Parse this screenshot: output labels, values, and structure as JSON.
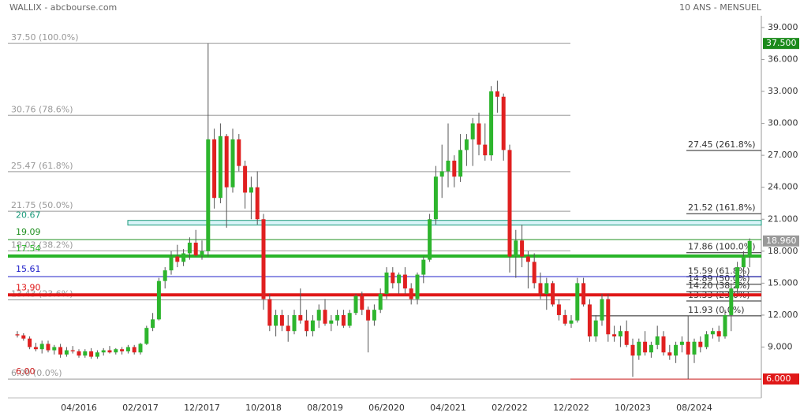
{
  "header": {
    "left": "WALLIX - abcbourse.com",
    "right": "10 ANS - MENSUEL"
  },
  "chart_data": {
    "type": "candlestick",
    "up_color": "#2db52d",
    "down_color": "#e02020",
    "categories": [
      null,
      null,
      null,
      null,
      null,
      null,
      null,
      null,
      null,
      null,
      "04/2016",
      null,
      null,
      null,
      null,
      null,
      null,
      null,
      null,
      null,
      "02/2017",
      null,
      null,
      null,
      null,
      null,
      null,
      null,
      null,
      null,
      "12/2017",
      null,
      null,
      null,
      null,
      null,
      null,
      null,
      null,
      null,
      "10/2018",
      null,
      null,
      null,
      null,
      null,
      null,
      null,
      null,
      null,
      "08/2019",
      null,
      null,
      null,
      null,
      null,
      null,
      null,
      null,
      null,
      "06/2020",
      null,
      null,
      null,
      null,
      null,
      null,
      null,
      null,
      null,
      "04/2021",
      null,
      null,
      null,
      null,
      null,
      null,
      null,
      null,
      null,
      "02/2022",
      null,
      null,
      null,
      null,
      null,
      null,
      null,
      null,
      null,
      "12/2022",
      null,
      null,
      null,
      null,
      null,
      null,
      null,
      null,
      null,
      "10/2023",
      null,
      null,
      null,
      null,
      null,
      null,
      null,
      null,
      null,
      "08/2024",
      null,
      null,
      null,
      null,
      null,
      null,
      null,
      null,
      null
    ],
    "open": [
      10.2,
      10.1,
      9.8,
      9,
      8.8,
      9.3,
      8.7,
      9,
      8.3,
      8.7,
      8.6,
      8.2,
      8.6,
      8.1,
      8.5,
      8.7,
      8.5,
      8.8,
      8.6,
      9.0,
      8.5,
      9.3,
      10.8,
      11.6,
      15.2,
      16.2,
      17.5,
      17,
      17.8,
      18.8,
      17.6,
      18,
      28.5,
      23,
      28.8,
      24,
      28.5,
      26,
      23.5,
      24,
      21,
      13.5,
      11,
      12,
      11,
      10.5,
      12,
      11.5,
      10.5,
      11.5,
      12.5,
      11.2,
      11.5,
      12,
      11,
      12.2,
      13.8,
      12.5,
      11.5,
      12.5,
      14,
      16,
      15,
      15.8,
      14.5,
      13.5,
      15.8,
      17.2,
      21,
      25,
      25.5,
      26.5,
      25,
      27.5,
      28.5,
      30,
      28,
      27,
      33,
      32.5,
      27.5,
      17.5,
      19,
      17.5,
      17,
      15,
      14,
      15,
      13,
      12,
      11.2,
      11.5,
      15,
      13,
      10,
      11.5,
      13.5,
      10.2,
      10,
      10.5,
      9.2,
      8.2,
      9.5,
      8.5,
      9.2,
      10,
      8.5,
      8.2,
      9.2,
      9.5,
      8.3,
      9.5,
      9,
      10.2,
      10.5,
      10,
      12,
      14.5,
      16.5,
      17.5
    ],
    "high": [
      10.5,
      10.3,
      10,
      9.4,
      9.6,
      9.6,
      9.2,
      9.3,
      9,
      9.1,
      8.8,
      8.8,
      8.9,
      8.7,
      8.9,
      9.1,
      8.9,
      9.0,
      9.2,
      9.2,
      9.4,
      11,
      12.2,
      15.5,
      16.5,
      18,
      18.6,
      18.2,
      19.3,
      20,
      19,
      37.5,
      29.5,
      30,
      29,
      29.5,
      29,
      26.5,
      25,
      25.5,
      21.5,
      14,
      12.5,
      12.5,
      12,
      12.5,
      14.5,
      12.5,
      12,
      13,
      13.5,
      12,
      12.5,
      12.5,
      12.5,
      14,
      14.2,
      12.8,
      13,
      14.5,
      16.5,
      16.5,
      16,
      16.5,
      15,
      16,
      17.5,
      21.5,
      26,
      28,
      30,
      27,
      29,
      29,
      30.5,
      31,
      30,
      33.5,
      34,
      32.8,
      28,
      20,
      20.5,
      18,
      17.8,
      16,
      15.5,
      15.2,
      13.5,
      12.5,
      12,
      15.5,
      15.5,
      13.5,
      12,
      14,
      14,
      11,
      11,
      11.5,
      9.8,
      9.8,
      10.5,
      9.5,
      11,
      10.5,
      9.2,
      9.5,
      10,
      11.9,
      9.8,
      10,
      10.5,
      10.8,
      11,
      12.5,
      15,
      17,
      18,
      19.2
    ],
    "low": [
      9.9,
      9.6,
      8.8,
      8.6,
      8.4,
      8.5,
      8.3,
      8.0,
      8.1,
      8.4,
      8.0,
      8.0,
      7.9,
      7.9,
      8.2,
      8.4,
      8.3,
      8.3,
      8.4,
      8.3,
      8.3,
      9.2,
      10.5,
      11.5,
      14.5,
      15.8,
      16.5,
      16.6,
      17.2,
      17.5,
      17.2,
      17.5,
      22,
      22.5,
      20.2,
      23.5,
      25.5,
      22,
      21,
      20.5,
      12.5,
      10.5,
      10,
      10.5,
      9.5,
      10.2,
      11.2,
      10,
      10,
      10.8,
      11,
      10.5,
      11,
      10.8,
      10.8,
      12,
      12,
      8.5,
      11,
      12.2,
      13.5,
      14.5,
      14,
      14,
      13,
      13,
      15,
      17,
      20.5,
      23,
      24,
      24,
      24.5,
      26,
      26,
      27,
      26.5,
      26.5,
      31,
      26.5,
      16,
      15.5,
      16.5,
      14.5,
      14.5,
      13.5,
      12.5,
      12.8,
      11.5,
      11,
      10.8,
      11.3,
      12.8,
      9.5,
      9.5,
      11,
      9.5,
      9.5,
      9,
      9,
      6.2,
      7.8,
      8.2,
      8,
      8.8,
      8.2,
      7.8,
      7.5,
      8.5,
      6,
      7.5,
      8.5,
      8.8,
      9.8,
      9.5,
      9.8,
      10.5,
      14,
      15.5,
      16.5
    ],
    "close": [
      10.1,
      9.8,
      9.0,
      8.8,
      9.3,
      8.7,
      9.0,
      8.3,
      8.7,
      8.6,
      8.2,
      8.6,
      8.1,
      8.5,
      8.7,
      8.5,
      8.8,
      8.6,
      9.0,
      8.5,
      9.3,
      10.8,
      11.6,
      15.2,
      16.2,
      17.5,
      17,
      17.8,
      18.8,
      17.6,
      18,
      28.5,
      23,
      28.8,
      24,
      28.5,
      26,
      23.5,
      24,
      21,
      13.5,
      11,
      12,
      11,
      10.5,
      12,
      11.5,
      10.5,
      11.5,
      12.5,
      11.2,
      11.5,
      12,
      11,
      12.2,
      13.8,
      12.5,
      11.5,
      12.5,
      14,
      16,
      15,
      15.8,
      14.5,
      13.5,
      15.8,
      17.2,
      21,
      25,
      25.5,
      26.5,
      25,
      27.5,
      28.5,
      30,
      28,
      27,
      33,
      32.5,
      27.5,
      17.5,
      19,
      17.5,
      17,
      15,
      14,
      15,
      13,
      12,
      11.2,
      11.5,
      15,
      13,
      10,
      11.5,
      13.5,
      10.2,
      10,
      10.5,
      9.2,
      8.2,
      9.5,
      8.5,
      9.2,
      10,
      8.5,
      8.2,
      9.2,
      9.5,
      8.3,
      9.5,
      9,
      10.2,
      10.5,
      10,
      12,
      14.5,
      16.5,
      17.5,
      18.96
    ],
    "ylim": [
      4.6,
      40.1
    ],
    "yticks": [
      {
        "value": 9,
        "label": "9.000"
      },
      {
        "value": 12,
        "label": "12.000"
      },
      {
        "value": 15,
        "label": "15.000"
      },
      {
        "value": 18,
        "label": "18.000"
      },
      {
        "value": 21,
        "label": "21.000"
      },
      {
        "value": 24,
        "label": "24.000"
      },
      {
        "value": 27,
        "label": "27.000"
      },
      {
        "value": 30,
        "label": "30.000"
      },
      {
        "value": 33,
        "label": "33.000"
      },
      {
        "value": 36,
        "label": "36.000"
      },
      {
        "value": 39,
        "label": "39.000"
      }
    ],
    "fib_left": [
      {
        "value": 37.5,
        "label": "37.50  (100.0%)"
      },
      {
        "value": 30.76,
        "label": "30.76  (78.6%)"
      },
      {
        "value": 25.47,
        "label": "25.47  (61.8%)"
      },
      {
        "value": 21.75,
        "label": "21.75  (50.0%)"
      },
      {
        "value": 18.03,
        "label": "18.03  (38.2%)"
      },
      {
        "value": 13.43,
        "label": "13.43  (23.6%)"
      },
      {
        "value": 6.0,
        "label": "6.00  (0.0%)"
      }
    ],
    "fib_right": [
      {
        "value": 27.45,
        "label": "27.45  (261.8%)"
      },
      {
        "value": 21.52,
        "label": "21.52  (161.8%)"
      },
      {
        "value": 17.86,
        "label": "17.86  (100.0%)"
      },
      {
        "value": 15.59,
        "label": "15.59  (61.8%)"
      },
      {
        "value": 14.89,
        "label": "14.89  (50.0%)"
      },
      {
        "value": 14.2,
        "label": "14.20  (38.2%)"
      },
      {
        "value": 13.33,
        "label": "13.33  (23.6%)"
      },
      {
        "value": 11.93,
        "label": "11.93  (0.0%)"
      }
    ],
    "lines": [
      {
        "value": 20.67,
        "label": "20.67",
        "color": "#1a9a7a",
        "width": 1,
        "band": true
      },
      {
        "value": 19.09,
        "label": "19.09",
        "color": "#1f8f1f",
        "width": 1
      },
      {
        "value": 17.54,
        "label": "17.54",
        "color": "#28b428",
        "width": 4
      },
      {
        "value": 15.61,
        "label": "15.61",
        "color": "#1c1cc8",
        "width": 1
      },
      {
        "value": 13.9,
        "label": "13.90",
        "color": "#e01818",
        "width": 4
      },
      {
        "value": 6.0,
        "label": "6.00",
        "color": "#c81818",
        "width": 1
      }
    ],
    "tags": [
      {
        "value": 37.5,
        "label": "37.500",
        "color": "#1a8a1a"
      },
      {
        "value": 18.96,
        "label": "18.960",
        "color": "#999999"
      },
      {
        "value": 6.0,
        "label": "6.000",
        "color": "#e01818"
      }
    ]
  }
}
